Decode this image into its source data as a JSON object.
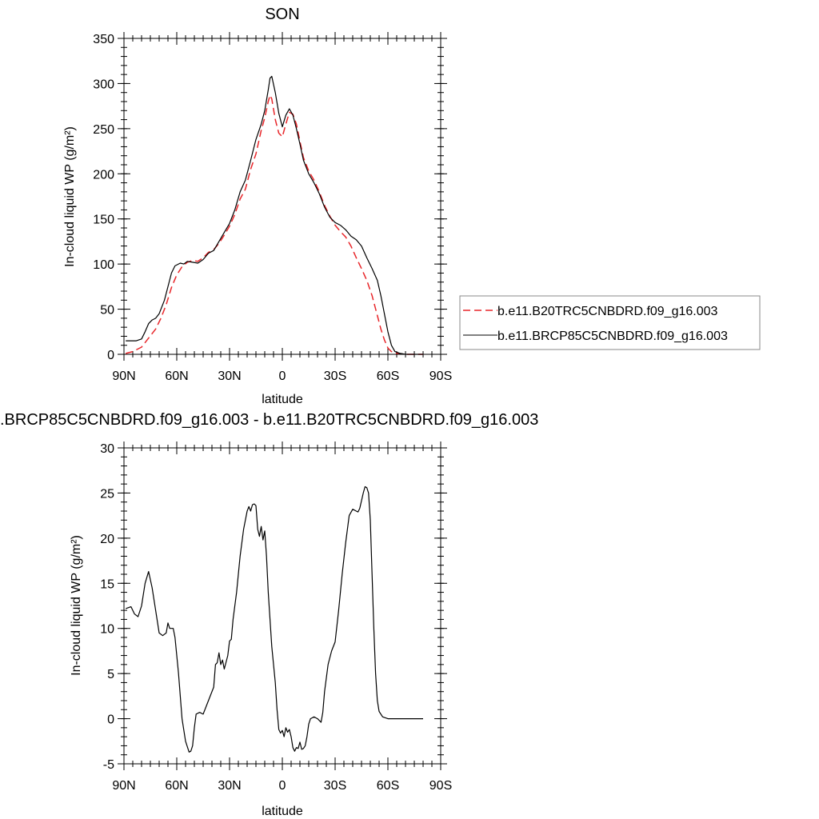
{
  "chart_data": [
    {
      "type": "line",
      "title": "SON",
      "xlabel": "latitude",
      "ylabel": "In-cloud liquid WP (g/m²)",
      "xlim": [
        -90,
        90
      ],
      "ylim": [
        0,
        350
      ],
      "x_ticks": [
        -90,
        -60,
        -30,
        0,
        30,
        60,
        90
      ],
      "x_tick_labels": [
        "90N",
        "60N",
        "30N",
        "0",
        "30S",
        "60S",
        "90S"
      ],
      "y_ticks": [
        0,
        50,
        100,
        150,
        200,
        250,
        300,
        350
      ],
      "y_tick_labels": [
        "0",
        "50",
        "100",
        "150",
        "200",
        "250",
        "300",
        "350"
      ],
      "legend_position": "right",
      "series": [
        {
          "name": "b.e11.B20TRC5CNBDRD.f09_g16.003",
          "color": "#e8262a",
          "dash": "dashed",
          "points": [
            [
              -89,
              1
            ],
            [
              -85,
              3
            ],
            [
              -80,
              8
            ],
            [
              -76,
              18
            ],
            [
              -72,
              28
            ],
            [
              -69,
              40
            ],
            [
              -66,
              55
            ],
            [
              -63,
              74
            ],
            [
              -60,
              88
            ],
            [
              -57,
              97
            ],
            [
              -54,
              102
            ],
            [
              -51,
              104
            ],
            [
              -48,
              103
            ],
            [
              -45,
              107
            ],
            [
              -42,
              113
            ],
            [
              -39,
              116
            ],
            [
              -36,
              123
            ],
            [
              -33,
              132
            ],
            [
              -30,
              142
            ],
            [
              -27,
              155
            ],
            [
              -24,
              172
            ],
            [
              -21,
              183
            ],
            [
              -18,
              205
            ],
            [
              -15,
              222
            ],
            [
              -12,
              248
            ],
            [
              -10,
              262
            ],
            [
              -8,
              280
            ],
            [
              -7,
              287
            ],
            [
              -6,
              283
            ],
            [
              -4,
              260
            ],
            [
              -2,
              245
            ],
            [
              0,
              241
            ],
            [
              2,
              255
            ],
            [
              4,
              268
            ],
            [
              6,
              266
            ],
            [
              8,
              255
            ],
            [
              10,
              236
            ],
            [
              12,
              218
            ],
            [
              15,
              203
            ],
            [
              18,
              193
            ],
            [
              21,
              180
            ],
            [
              24,
              165
            ],
            [
              27,
              153
            ],
            [
              30,
              143
            ],
            [
              33,
              136
            ],
            [
              36,
              130
            ],
            [
              39,
              120
            ],
            [
              42,
              107
            ],
            [
              45,
              95
            ],
            [
              48,
              82
            ],
            [
              51,
              65
            ],
            [
              54,
              43
            ],
            [
              56,
              28
            ],
            [
              58,
              16
            ],
            [
              60,
              7
            ],
            [
              62,
              3
            ],
            [
              65,
              1
            ],
            [
              70,
              0
            ],
            [
              75,
              0
            ],
            [
              80,
              0
            ]
          ]
        },
        {
          "name": "b.e11.BRCP85C5CNBDRD.f09_g16.003",
          "color": "#000000",
          "dash": "solid",
          "points": [
            [
              -89,
              15
            ],
            [
              -83,
              15
            ],
            [
              -80,
              17
            ],
            [
              -78,
              25
            ],
            [
              -76,
              34
            ],
            [
              -74,
              38
            ],
            [
              -72,
              40
            ],
            [
              -70,
              45
            ],
            [
              -67,
              60
            ],
            [
              -65,
              75
            ],
            [
              -63,
              90
            ],
            [
              -61,
              98
            ],
            [
              -58,
              101
            ],
            [
              -56,
              100
            ],
            [
              -54,
              103
            ],
            [
              -51,
              102
            ],
            [
              -48,
              101
            ],
            [
              -45,
              105
            ],
            [
              -42,
              112
            ],
            [
              -39,
              115
            ],
            [
              -36,
              125
            ],
            [
              -33,
              135
            ],
            [
              -30,
              145
            ],
            [
              -27,
              160
            ],
            [
              -24,
              180
            ],
            [
              -21,
              193
            ],
            [
              -18,
              215
            ],
            [
              -15,
              238
            ],
            [
              -12,
              255
            ],
            [
              -10,
              270
            ],
            [
              -8,
              293
            ],
            [
              -7,
              306
            ],
            [
              -6,
              308
            ],
            [
              -4,
              290
            ],
            [
              -2,
              267
            ],
            [
              0,
              252
            ],
            [
              2,
              265
            ],
            [
              4,
              272
            ],
            [
              6,
              265
            ],
            [
              8,
              250
            ],
            [
              10,
              233
            ],
            [
              12,
              215
            ],
            [
              15,
              200
            ],
            [
              18,
              190
            ],
            [
              21,
              178
            ],
            [
              24,
              163
            ],
            [
              27,
              152
            ],
            [
              30,
              146
            ],
            [
              33,
              143
            ],
            [
              36,
              138
            ],
            [
              39,
              131
            ],
            [
              42,
              127
            ],
            [
              45,
              120
            ],
            [
              48,
              107
            ],
            [
              51,
              95
            ],
            [
              54,
              82
            ],
            [
              56,
              65
            ],
            [
              58,
              45
            ],
            [
              60,
              25
            ],
            [
              62,
              10
            ],
            [
              64,
              3
            ],
            [
              67,
              1
            ],
            [
              70,
              0
            ],
            [
              75,
              0
            ],
            [
              80,
              0
            ]
          ]
        }
      ]
    },
    {
      "type": "line",
      "title": ".BRCP85C5CNBDRD.f09_g16.003 - b.e11.B20TRC5CNBDRD.f09_g16.003",
      "xlabel": "latitude",
      "ylabel": "In-cloud liquid WP (g/m²)",
      "xlim": [
        -90,
        90
      ],
      "ylim": [
        -5,
        30
      ],
      "x_ticks": [
        -90,
        -60,
        -30,
        0,
        30,
        60,
        90
      ],
      "x_tick_labels": [
        "90N",
        "60N",
        "30N",
        "0",
        "30S",
        "60S",
        "90S"
      ],
      "y_ticks": [
        -5,
        0,
        5,
        10,
        15,
        20,
        25,
        30
      ],
      "y_tick_labels": [
        "-5",
        "0",
        "5",
        "10",
        "15",
        "20",
        "25",
        "30"
      ],
      "series": [
        {
          "color": "#000000",
          "dash": "solid",
          "points": [
            [
              -89,
              12.2
            ],
            [
              -86,
              12.4
            ],
            [
              -84,
              11.6
            ],
            [
              -82,
              11.3
            ],
            [
              -80,
              12.5
            ],
            [
              -78,
              15
            ],
            [
              -76,
              16.3
            ],
            [
              -74,
              14.5
            ],
            [
              -72,
              12
            ],
            [
              -70,
              9.5
            ],
            [
              -68,
              9.2
            ],
            [
              -66,
              9.5
            ],
            [
              -65,
              10.6
            ],
            [
              -64,
              10
            ],
            [
              -62,
              10
            ],
            [
              -61,
              9
            ],
            [
              -59,
              5
            ],
            [
              -57,
              0
            ],
            [
              -55,
              -2.5
            ],
            [
              -53,
              -3.7
            ],
            [
              -52,
              -3.6
            ],
            [
              -51,
              -3
            ],
            [
              -50,
              -1
            ],
            [
              -49,
              0.5
            ],
            [
              -47,
              0.7
            ],
            [
              -45,
              0.5
            ],
            [
              -43,
              1.5
            ],
            [
              -41,
              2.5
            ],
            [
              -39,
              3.5
            ],
            [
              -38,
              6
            ],
            [
              -37,
              6.2
            ],
            [
              -36,
              7.3
            ],
            [
              -35,
              6
            ],
            [
              -34,
              6.5
            ],
            [
              -33,
              5.5
            ],
            [
              -31,
              7
            ],
            [
              -30,
              8.6
            ],
            [
              -29,
              8.8
            ],
            [
              -28,
              11
            ],
            [
              -26,
              14
            ],
            [
              -24,
              18
            ],
            [
              -22,
              21
            ],
            [
              -20,
              23
            ],
            [
              -19,
              23.5
            ],
            [
              -18,
              23
            ],
            [
              -17,
              23.7
            ],
            [
              -16,
              23.8
            ],
            [
              -15,
              23.6
            ],
            [
              -14,
              21
            ],
            [
              -13,
              20.2
            ],
            [
              -12,
              21.3
            ],
            [
              -11,
              19.8
            ],
            [
              -10,
              20.8
            ],
            [
              -9,
              18
            ],
            [
              -8,
              14
            ],
            [
              -6,
              8
            ],
            [
              -4,
              4
            ],
            [
              -3,
              1
            ],
            [
              -2,
              -1.2
            ],
            [
              -1,
              -1.6
            ],
            [
              0,
              -1.3
            ],
            [
              1,
              -2
            ],
            [
              2,
              -1
            ],
            [
              3,
              -1.5
            ],
            [
              4,
              -1.2
            ],
            [
              5,
              -2
            ],
            [
              6,
              -3.2
            ],
            [
              7,
              -3.6
            ],
            [
              8,
              -3.2
            ],
            [
              9,
              -3.3
            ],
            [
              10,
              -2.6
            ],
            [
              11,
              -3.4
            ],
            [
              12,
              -3.3
            ],
            [
              13,
              -3
            ],
            [
              14,
              -2
            ],
            [
              15,
              -0.6
            ],
            [
              16,
              0
            ],
            [
              18,
              0.2
            ],
            [
              20,
              0
            ],
            [
              22,
              -0.4
            ],
            [
              23,
              0.7
            ],
            [
              24,
              3
            ],
            [
              26,
              6
            ],
            [
              28,
              7.5
            ],
            [
              30,
              8.5
            ],
            [
              32,
              12
            ],
            [
              34,
              16
            ],
            [
              36,
              19.5
            ],
            [
              38,
              22.5
            ],
            [
              40,
              23.2
            ],
            [
              42,
              23
            ],
            [
              43,
              22.9
            ],
            [
              44,
              23.3
            ],
            [
              46,
              25
            ],
            [
              47,
              25.7
            ],
            [
              48,
              25.6
            ],
            [
              49,
              25
            ],
            [
              50,
              22
            ],
            [
              51,
              16
            ],
            [
              52,
              10
            ],
            [
              53,
              5
            ],
            [
              54,
              2
            ],
            [
              55,
              0.8
            ],
            [
              57,
              0.2
            ],
            [
              60,
              0
            ],
            [
              65,
              0
            ],
            [
              70,
              0
            ],
            [
              80,
              0
            ]
          ]
        }
      ]
    }
  ]
}
